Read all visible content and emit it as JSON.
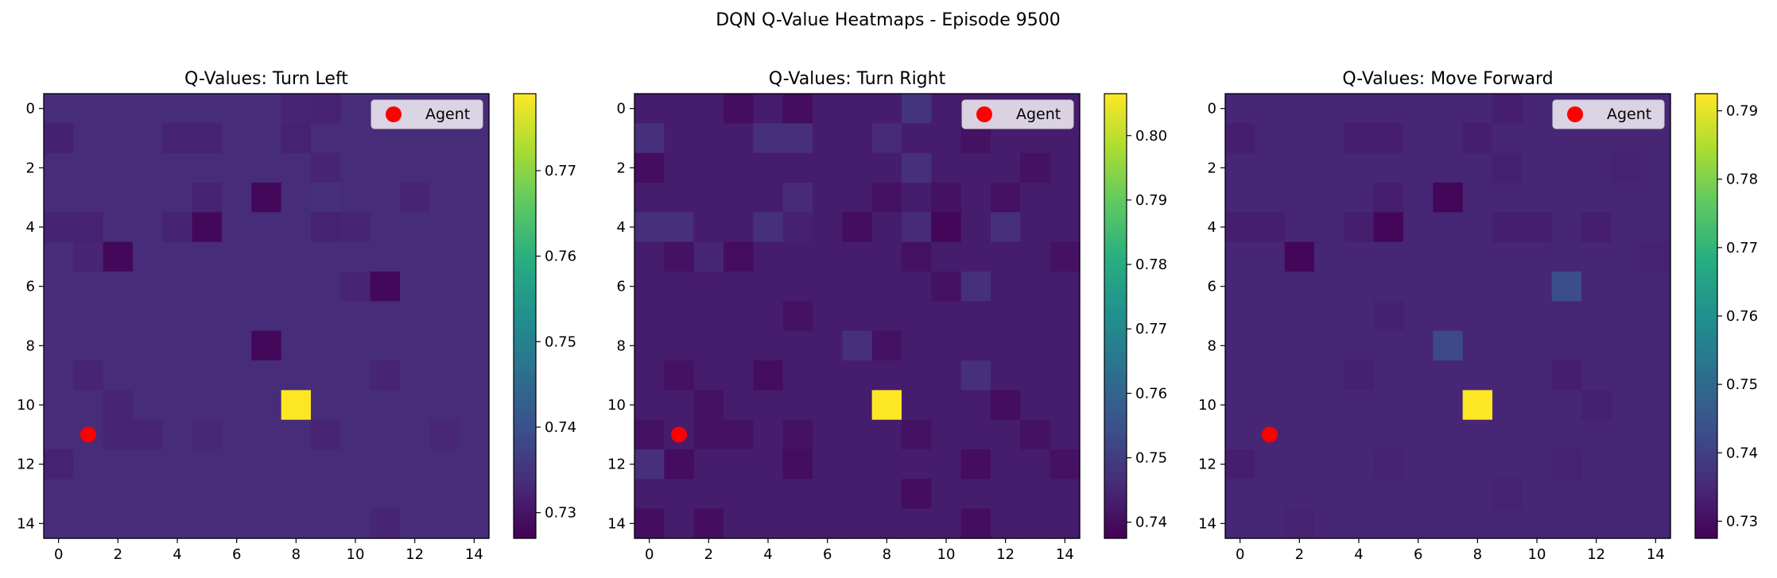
{
  "figure": {
    "title": "DQN Q-Value Heatmaps - Episode 9500"
  },
  "chart_data": [
    {
      "type": "heatmap",
      "title": "Q-Values: Turn Left",
      "grid_size": 15,
      "x_ticks": [
        0,
        2,
        4,
        6,
        8,
        10,
        12,
        14
      ],
      "y_ticks": [
        0,
        2,
        4,
        6,
        8,
        10,
        12,
        14
      ],
      "colormap": "viridis",
      "vmin": 0.727,
      "vmax": 0.779,
      "colorbar_ticks": [
        0.73,
        0.74,
        0.75,
        0.76,
        0.77
      ],
      "base_value": 0.7335,
      "cells": [
        {
          "row": 0,
          "col": 8,
          "value": 0.7325
        },
        {
          "row": 0,
          "col": 9,
          "value": 0.732
        },
        {
          "row": 1,
          "col": 0,
          "value": 0.7318
        },
        {
          "row": 1,
          "col": 4,
          "value": 0.7322
        },
        {
          "row": 1,
          "col": 5,
          "value": 0.732
        },
        {
          "row": 1,
          "col": 8,
          "value": 0.7322
        },
        {
          "row": 2,
          "col": 9,
          "value": 0.7325
        },
        {
          "row": 3,
          "col": 5,
          "value": 0.7322
        },
        {
          "row": 3,
          "col": 7,
          "value": 0.728
        },
        {
          "row": 3,
          "col": 9,
          "value": 0.734
        },
        {
          "row": 3,
          "col": 12,
          "value": 0.7325
        },
        {
          "row": 4,
          "col": 0,
          "value": 0.7322
        },
        {
          "row": 4,
          "col": 1,
          "value": 0.732
        },
        {
          "row": 4,
          "col": 4,
          "value": 0.7322
        },
        {
          "row": 4,
          "col": 5,
          "value": 0.728
        },
        {
          "row": 4,
          "col": 9,
          "value": 0.7322
        },
        {
          "row": 4,
          "col": 10,
          "value": 0.7325
        },
        {
          "row": 5,
          "col": 2,
          "value": 0.728
        },
        {
          "row": 5,
          "col": 1,
          "value": 0.7325
        },
        {
          "row": 6,
          "col": 11,
          "value": 0.728
        },
        {
          "row": 6,
          "col": 10,
          "value": 0.7325
        },
        {
          "row": 8,
          "col": 7,
          "value": 0.728
        },
        {
          "row": 9,
          "col": 1,
          "value": 0.7325
        },
        {
          "row": 9,
          "col": 11,
          "value": 0.7325
        },
        {
          "row": 10,
          "col": 2,
          "value": 0.7325
        },
        {
          "row": 10,
          "col": 8,
          "value": 0.779
        },
        {
          "row": 11,
          "col": 2,
          "value": 0.7325
        },
        {
          "row": 11,
          "col": 3,
          "value": 0.7325
        },
        {
          "row": 11,
          "col": 5,
          "value": 0.7328
        },
        {
          "row": 11,
          "col": 9,
          "value": 0.7325
        },
        {
          "row": 11,
          "col": 13,
          "value": 0.7328
        },
        {
          "row": 12,
          "col": 0,
          "value": 0.732
        },
        {
          "row": 14,
          "col": 11,
          "value": 0.7325
        }
      ],
      "agent": {
        "label": "Agent",
        "row": 11,
        "col": 1,
        "color": "#ff0000"
      }
    },
    {
      "type": "heatmap",
      "title": "Q-Values: Turn Right",
      "grid_size": 15,
      "x_ticks": [
        0,
        2,
        4,
        6,
        8,
        10,
        12,
        14
      ],
      "y_ticks": [
        0,
        2,
        4,
        6,
        8,
        10,
        12,
        14
      ],
      "colormap": "viridis",
      "vmin": 0.7375,
      "vmax": 0.8065,
      "colorbar_ticks": [
        0.74,
        0.75,
        0.76,
        0.77,
        0.78,
        0.79,
        0.8
      ],
      "base_value": 0.743,
      "cells": [
        {
          "row": 0,
          "col": 3,
          "value": 0.74
        },
        {
          "row": 0,
          "col": 5,
          "value": 0.74
        },
        {
          "row": 0,
          "col": 9,
          "value": 0.748
        },
        {
          "row": 1,
          "col": 0,
          "value": 0.747
        },
        {
          "row": 1,
          "col": 4,
          "value": 0.747
        },
        {
          "row": 1,
          "col": 5,
          "value": 0.747
        },
        {
          "row": 1,
          "col": 8,
          "value": 0.746
        },
        {
          "row": 1,
          "col": 11,
          "value": 0.741
        },
        {
          "row": 2,
          "col": 0,
          "value": 0.74
        },
        {
          "row": 2,
          "col": 9,
          "value": 0.747
        },
        {
          "row": 2,
          "col": 13,
          "value": 0.741
        },
        {
          "row": 3,
          "col": 5,
          "value": 0.746
        },
        {
          "row": 3,
          "col": 8,
          "value": 0.741
        },
        {
          "row": 3,
          "col": 10,
          "value": 0.741
        },
        {
          "row": 3,
          "col": 12,
          "value": 0.741
        },
        {
          "row": 4,
          "col": 0,
          "value": 0.747
        },
        {
          "row": 4,
          "col": 1,
          "value": 0.747
        },
        {
          "row": 4,
          "col": 4,
          "value": 0.747
        },
        {
          "row": 4,
          "col": 5,
          "value": 0.744
        },
        {
          "row": 4,
          "col": 7,
          "value": 0.74
        },
        {
          "row": 4,
          "col": 9,
          "value": 0.746
        },
        {
          "row": 4,
          "col": 10,
          "value": 0.7385
        },
        {
          "row": 4,
          "col": 12,
          "value": 0.747
        },
        {
          "row": 5,
          "col": 1,
          "value": 0.741
        },
        {
          "row": 5,
          "col": 2,
          "value": 0.745
        },
        {
          "row": 5,
          "col": 3,
          "value": 0.74
        },
        {
          "row": 5,
          "col": 9,
          "value": 0.741
        },
        {
          "row": 5,
          "col": 14,
          "value": 0.741
        },
        {
          "row": 6,
          "col": 10,
          "value": 0.741
        },
        {
          "row": 6,
          "col": 11,
          "value": 0.747
        },
        {
          "row": 7,
          "col": 5,
          "value": 0.741
        },
        {
          "row": 8,
          "col": 7,
          "value": 0.747
        },
        {
          "row": 8,
          "col": 8,
          "value": 0.741
        },
        {
          "row": 9,
          "col": 1,
          "value": 0.741
        },
        {
          "row": 9,
          "col": 4,
          "value": 0.74
        },
        {
          "row": 9,
          "col": 11,
          "value": 0.747
        },
        {
          "row": 10,
          "col": 2,
          "value": 0.741
        },
        {
          "row": 10,
          "col": 8,
          "value": 0.8065
        },
        {
          "row": 10,
          "col": 12,
          "value": 0.74
        },
        {
          "row": 11,
          "col": 0,
          "value": 0.741
        },
        {
          "row": 11,
          "col": 2,
          "value": 0.741
        },
        {
          "row": 11,
          "col": 3,
          "value": 0.741
        },
        {
          "row": 11,
          "col": 5,
          "value": 0.741
        },
        {
          "row": 11,
          "col": 9,
          "value": 0.741
        },
        {
          "row": 11,
          "col": 13,
          "value": 0.741
        },
        {
          "row": 12,
          "col": 0,
          "value": 0.747
        },
        {
          "row": 12,
          "col": 1,
          "value": 0.74
        },
        {
          "row": 12,
          "col": 5,
          "value": 0.74
        },
        {
          "row": 12,
          "col": 11,
          "value": 0.74
        },
        {
          "row": 12,
          "col": 14,
          "value": 0.741
        },
        {
          "row": 13,
          "col": 9,
          "value": 0.74
        },
        {
          "row": 14,
          "col": 0,
          "value": 0.74
        },
        {
          "row": 14,
          "col": 2,
          "value": 0.74
        },
        {
          "row": 14,
          "col": 11,
          "value": 0.74
        }
      ],
      "agent": {
        "label": "Agent",
        "row": 11,
        "col": 1,
        "color": "#ff0000"
      }
    },
    {
      "type": "heatmap",
      "title": "Q-Values: Move Forward",
      "grid_size": 15,
      "x_ticks": [
        0,
        2,
        4,
        6,
        8,
        10,
        12,
        14
      ],
      "y_ticks": [
        0,
        2,
        4,
        6,
        8,
        10,
        12,
        14
      ],
      "colormap": "viridis",
      "vmin": 0.7275,
      "vmax": 0.7925,
      "colorbar_ticks": [
        0.73,
        0.74,
        0.75,
        0.76,
        0.77,
        0.78,
        0.79
      ],
      "base_value": 0.7345,
      "cells": [
        {
          "row": 0,
          "col": 9,
          "value": 0.733
        },
        {
          "row": 1,
          "col": 0,
          "value": 0.733
        },
        {
          "row": 1,
          "col": 4,
          "value": 0.733
        },
        {
          "row": 1,
          "col": 5,
          "value": 0.733
        },
        {
          "row": 1,
          "col": 8,
          "value": 0.733
        },
        {
          "row": 2,
          "col": 9,
          "value": 0.7335
        },
        {
          "row": 2,
          "col": 13,
          "value": 0.7338
        },
        {
          "row": 3,
          "col": 5,
          "value": 0.733
        },
        {
          "row": 3,
          "col": 7,
          "value": 0.7285
        },
        {
          "row": 4,
          "col": 0,
          "value": 0.733
        },
        {
          "row": 4,
          "col": 1,
          "value": 0.733
        },
        {
          "row": 4,
          "col": 4,
          "value": 0.733
        },
        {
          "row": 4,
          "col": 5,
          "value": 0.7285
        },
        {
          "row": 4,
          "col": 9,
          "value": 0.733
        },
        {
          "row": 4,
          "col": 10,
          "value": 0.733
        },
        {
          "row": 4,
          "col": 12,
          "value": 0.733
        },
        {
          "row": 5,
          "col": 2,
          "value": 0.7285
        },
        {
          "row": 5,
          "col": 14,
          "value": 0.7338
        },
        {
          "row": 6,
          "col": 11,
          "value": 0.743
        },
        {
          "row": 7,
          "col": 5,
          "value": 0.7335
        },
        {
          "row": 8,
          "col": 7,
          "value": 0.742
        },
        {
          "row": 9,
          "col": 4,
          "value": 0.7335
        },
        {
          "row": 9,
          "col": 11,
          "value": 0.733
        },
        {
          "row": 10,
          "col": 8,
          "value": 0.7925
        },
        {
          "row": 10,
          "col": 12,
          "value": 0.7335
        },
        {
          "row": 12,
          "col": 0,
          "value": 0.733
        },
        {
          "row": 12,
          "col": 5,
          "value": 0.7338
        },
        {
          "row": 12,
          "col": 11,
          "value": 0.7338
        },
        {
          "row": 13,
          "col": 9,
          "value": 0.7338
        },
        {
          "row": 14,
          "col": 2,
          "value": 0.7338
        }
      ],
      "agent": {
        "label": "Agent",
        "row": 11,
        "col": 1,
        "color": "#ff0000"
      }
    }
  ]
}
